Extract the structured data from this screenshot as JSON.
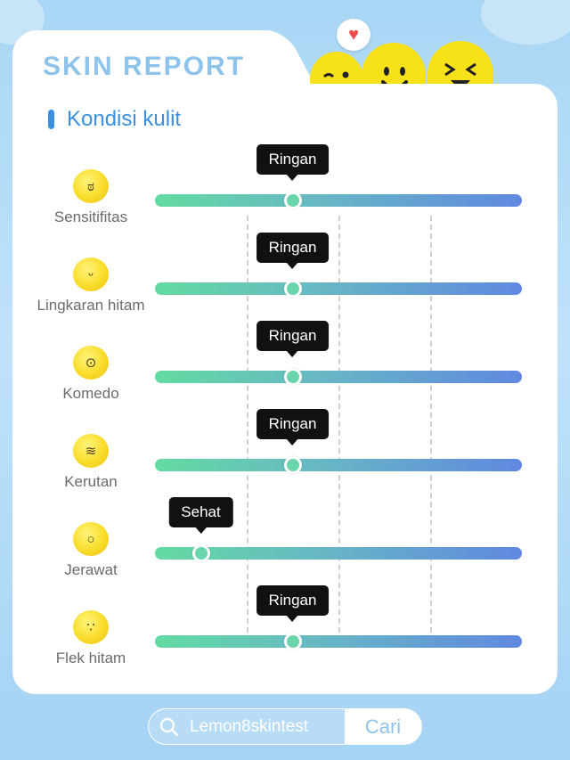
{
  "header": {
    "title": "SKIN REPORT",
    "mascot_heart": "♥"
  },
  "section": {
    "title": "Kondisi kulit"
  },
  "metrics": [
    {
      "label": "Sensitifitas",
      "level": "Ringan",
      "value": 0.375,
      "icon": "surprised-face-icon",
      "glyph": "ಠ"
    },
    {
      "label": "Lingkaran hitam",
      "level": "Ringan",
      "value": 0.375,
      "icon": "tired-eyes-face-icon",
      "glyph": "ᵕ"
    },
    {
      "label": "Komedo",
      "level": "Ringan",
      "value": 0.375,
      "icon": "worried-face-icon",
      "glyph": "⊙"
    },
    {
      "label": "Kerutan",
      "level": "Ringan",
      "value": 0.375,
      "icon": "old-face-icon",
      "glyph": "≋"
    },
    {
      "label": "Jerawat",
      "level": "Sehat",
      "value": 0.125,
      "icon": "shocked-face-icon",
      "glyph": "○"
    },
    {
      "label": "Flek hitam",
      "level": "Ringan",
      "value": 0.375,
      "icon": "freckled-face-icon",
      "glyph": "∵"
    }
  ],
  "search": {
    "value": "Lemon8skintest",
    "button_label": "Cari"
  },
  "colors": {
    "accent": "#3a8fe0",
    "title": "#8ec3ec",
    "track_start": "#63dba1",
    "track_end": "#6088e0",
    "mascot": "#f7e21a"
  }
}
